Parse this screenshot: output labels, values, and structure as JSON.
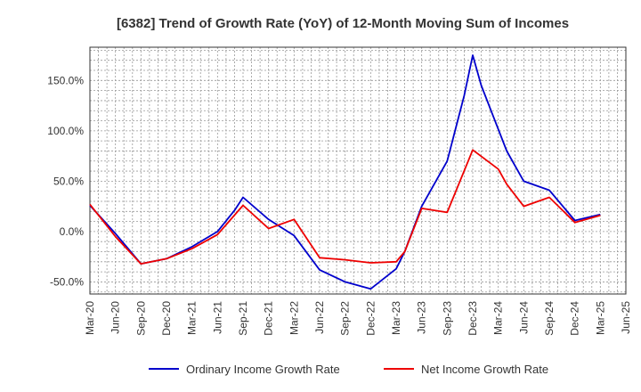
{
  "chart_data": {
    "type": "line",
    "title": "[6382]  Trend of Growth Rate (YoY) of 12-Month Moving Sum of Incomes",
    "xlabel": "",
    "ylabel": "",
    "x_tick_labels": [
      "Mar-20",
      "Jun-20",
      "Sep-20",
      "Dec-20",
      "Mar-21",
      "Jun-21",
      "Sep-21",
      "Dec-21",
      "Mar-22",
      "Jun-22",
      "Sep-22",
      "Dec-22",
      "Mar-23",
      "Jun-23",
      "Sep-23",
      "Dec-23",
      "Mar-24",
      "Jun-24",
      "Sep-24",
      "Dec-24",
      "Mar-25",
      "Jun-25"
    ],
    "y_tick_labels": [
      "150.0%",
      "100.0%",
      "50.0%",
      "0.0%",
      "-50.0%"
    ],
    "y_ticks": [
      150,
      100,
      50,
      0,
      -50
    ],
    "ylim": [
      -62,
      183
    ],
    "grid": true,
    "legend_position": "bottom",
    "series": [
      {
        "name": "Ordinary Income Growth Rate",
        "color": "#0000cc",
        "points": [
          [
            "Mar-20",
            26
          ],
          [
            "Jun-20",
            -2
          ],
          [
            "Sep-20",
            -32
          ],
          [
            "Dec-20",
            -27
          ],
          [
            "Mar-21",
            -15
          ],
          [
            "Jun-21",
            0
          ],
          [
            "Aug-21",
            21
          ],
          [
            "Sep-21",
            34
          ],
          [
            "Dec-21",
            12
          ],
          [
            "Mar-22",
            -4
          ],
          [
            "Jun-22",
            -38
          ],
          [
            "Sep-22",
            -50
          ],
          [
            "Dec-22",
            -57
          ],
          [
            "Mar-23",
            -37
          ],
          [
            "Apr-23",
            -20
          ],
          [
            "Jun-23",
            25
          ],
          [
            "Sep-23",
            70
          ],
          [
            "Nov-23",
            135
          ],
          [
            "Dec-23",
            175
          ],
          [
            "Jan-24",
            145
          ],
          [
            "Apr-24",
            80
          ],
          [
            "Jun-24",
            50
          ],
          [
            "Sep-24",
            41
          ],
          [
            "Dec-24",
            11
          ],
          [
            "Mar-25",
            17
          ]
        ]
      },
      {
        "name": "Net Income Growth Rate",
        "color": "#ee0000",
        "points": [
          [
            "Mar-20",
            27
          ],
          [
            "Jun-20",
            -5
          ],
          [
            "Sep-20",
            -32
          ],
          [
            "Dec-20",
            -27
          ],
          [
            "Mar-21",
            -17
          ],
          [
            "Jun-21",
            -3
          ],
          [
            "Sep-21",
            26
          ],
          [
            "Dec-21",
            3
          ],
          [
            "Mar-22",
            12
          ],
          [
            "Jun-22",
            -26
          ],
          [
            "Sep-22",
            -28
          ],
          [
            "Dec-22",
            -31
          ],
          [
            "Mar-23",
            -30
          ],
          [
            "Apr-23",
            -20
          ],
          [
            "Jun-23",
            23
          ],
          [
            "Sep-23",
            19
          ],
          [
            "Dec-23",
            81
          ],
          [
            "Mar-24",
            62
          ],
          [
            "Apr-24",
            47
          ],
          [
            "Jun-24",
            25
          ],
          [
            "Sep-24",
            34
          ],
          [
            "Dec-24",
            9
          ],
          [
            "Mar-25",
            16
          ]
        ]
      }
    ]
  }
}
